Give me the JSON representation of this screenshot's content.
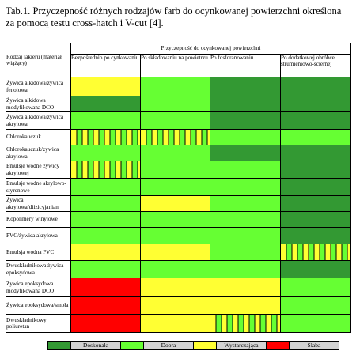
{
  "title": "Tab.1. Przyczepność różnych rodzajów farb do ocynkowanej powierzchni określona za pomocą testu cross-hatch i V-cut [4].",
  "colors": {
    "exc": "#339933",
    "good": "#66ff33",
    "suf": "#ffff33",
    "weak": "#ff0000"
  },
  "table": {
    "row_header": "Rodzaj lakieru (materiał wiążący)",
    "group_header": "Przyczepność do ocynkowanej powierzchni",
    "columns": [
      "Bezpośrednio po cynkowaniu",
      "Po składowaniu na powietrzu",
      "Po fosforanowaniu",
      "Po dodatkowej obróbce strumieniowo-ściernej"
    ],
    "rows": [
      {
        "label": "Żywica alkidowa/żywica fenolowa",
        "cells": [
          "suf",
          "good",
          "exc",
          "exc"
        ]
      },
      {
        "label": "Żywica alkidowa modyfikowana DCO",
        "cells": [
          "exc",
          "good",
          "exc",
          "exc"
        ]
      },
      {
        "label": "Żywica alkidowa/żywica akrylowa",
        "cells": [
          "good",
          "good",
          "exc",
          "exc"
        ]
      },
      {
        "label": "Chlorokauczuk",
        "cells": [
          "mix",
          "mix",
          "good",
          "good"
        ]
      },
      {
        "label": "Chlorokauczuk/żywica akrylowa",
        "cells": [
          "good",
          "good",
          "exc",
          "exc"
        ]
      },
      {
        "label": "Emulsje wodne żywicy akrylowej",
        "cells": [
          "mix",
          "good",
          "good",
          "exc"
        ]
      },
      {
        "label": "Emulsje wodne akrylowo-styrenowe",
        "cells": [
          "good",
          "good",
          "good",
          "exc"
        ]
      },
      {
        "label": "Żywica akrylowa/diizicyjanian",
        "cells": [
          "good",
          "suf",
          "good",
          "exc"
        ]
      },
      {
        "label": "Kopolimery winylowe",
        "cells": [
          "good",
          "good",
          "good",
          "exc"
        ]
      },
      {
        "label": "PVC/żywica akrylowa",
        "cells": [
          "good",
          "good",
          "good",
          "exc"
        ]
      },
      {
        "label": "Emulsja wodna PVC",
        "cells": [
          "suf",
          "suf",
          "good",
          "mix"
        ]
      },
      {
        "label": "Dwuskładnikowa żywica epoksydowa",
        "cells": [
          "good",
          "good",
          "good",
          "exc"
        ]
      },
      {
        "label": "Żywica epoksydowa modyfikowana DCO",
        "cells": [
          "weak",
          "suf",
          "suf",
          "good"
        ]
      },
      {
        "label": "Żywica epoksydowa/smoła",
        "cells": [
          "weak",
          "suf",
          "suf",
          "good"
        ]
      },
      {
        "label": "Dwuskładnikowy poliuretan",
        "cells": [
          "weak",
          "suf",
          "mix",
          "good"
        ]
      }
    ]
  },
  "legend": [
    {
      "key": "exc",
      "label": "Doskonała"
    },
    {
      "key": "good",
      "label": "Dobra"
    },
    {
      "key": "suf",
      "label": "Wystarczająca"
    },
    {
      "key": "weak",
      "label": "Słaba"
    }
  ]
}
